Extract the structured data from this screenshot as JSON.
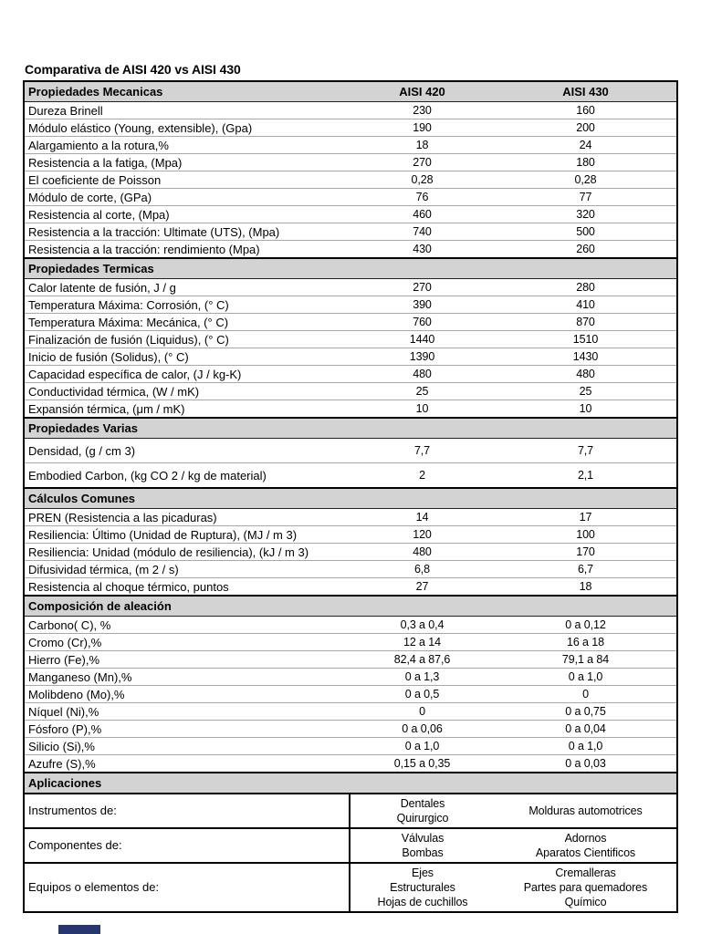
{
  "page": {
    "title": "Comparativa de AISI 420 vs AISI 430",
    "background_color": "#ffffff",
    "table_header_bg": "#d3d3d3",
    "table_border_color": "#000000",
    "footer_bar_color": "#27366f"
  },
  "table": {
    "col_headers": [
      "AISI 420",
      "AISI 430"
    ],
    "sections": [
      {
        "header": "Propiedades Mecanicas",
        "rows": [
          [
            "Dureza Brinell",
            "230",
            "160"
          ],
          [
            "Módulo elástico (Young, extensible), (Gpa)",
            "190",
            "200"
          ],
          [
            "Alargamiento a la rotura,%",
            "18",
            "24"
          ],
          [
            "Resistencia a la fatiga, (Mpa)",
            "270",
            "180"
          ],
          [
            "El coeficiente de Poisson",
            "0,28",
            "0,28"
          ],
          [
            "Módulo de corte, (GPa)",
            "76",
            "77"
          ],
          [
            "Resistencia al corte, (Mpa)",
            "460",
            "320"
          ],
          [
            "Resistencia a la tracción: Ultimate (UTS), (Mpa)",
            "740",
            "500"
          ],
          [
            "Resistencia a la tracción: rendimiento (Mpa)",
            "430",
            "260"
          ]
        ]
      },
      {
        "header": "Propiedades Termicas",
        "rows": [
          [
            "Calor latente de fusión, J / g",
            "270",
            "280"
          ],
          [
            "Temperatura Máxima: Corrosión, (° C)",
            "390",
            "410"
          ],
          [
            "Temperatura Máxima: Mecánica, (° C)",
            "760",
            "870"
          ],
          [
            "Finalización de fusión (Liquidus), (° C)",
            "1440",
            "1510"
          ],
          [
            "Inicio de fusión (Solidus), (° C)",
            "1390",
            "1430"
          ],
          [
            "Capacidad específica de calor, (J / kg-K)",
            "480",
            "480"
          ],
          [
            "Conductividad térmica, (W / mK)",
            "25",
            "25"
          ],
          [
            "Expansión térmica, (μm / mK)",
            "10",
            "10"
          ]
        ]
      },
      {
        "header": "Propiedades Varias",
        "tall": true,
        "rows": [
          [
            "Densidad, (g / cm 3)",
            "7,7",
            "7,7"
          ],
          [
            "Embodied Carbon, (kg CO 2 / kg de material)",
            "2",
            "2,1"
          ]
        ]
      },
      {
        "header": "Cálculos Comunes",
        "rows": [
          [
            "PREN (Resistencia a las picaduras)",
            "14",
            "17"
          ],
          [
            "Resiliencia: Último (Unidad de Ruptura), (MJ / m 3)",
            "120",
            "100"
          ],
          [
            "Resiliencia: Unidad (módulo de resiliencia), (kJ / m 3)",
            "480",
            "170"
          ],
          [
            "Difusividad térmica, (m 2 / s)",
            "6,8",
            "6,7"
          ],
          [
            "Resistencia al choque térmico, puntos",
            "27",
            "18"
          ]
        ]
      },
      {
        "header": "Composición de aleación",
        "rows": [
          [
            "Carbono( C), %",
            "0,3 a 0,4",
            "0 a 0,12"
          ],
          [
            "Cromo (Cr),%",
            "12 a 14",
            "16 a 18"
          ],
          [
            "Hierro (Fe),%",
            "82,4 a 87,6",
            "79,1 a 84"
          ],
          [
            "Manganeso (Mn),%",
            "0 a 1,3",
            "0 a 1,0"
          ],
          [
            "Molibdeno (Mo),%",
            "0 a 0,5",
            "0"
          ],
          [
            "Níquel (Ni),%",
            "0",
            "0 a 0,75"
          ],
          [
            "Fósforo (P),%",
            "0 a 0,06",
            "0 a 0,04"
          ],
          [
            "Silicio (Si),%",
            "0 a 1,0",
            "0 a 1,0"
          ],
          [
            "Azufre (S),%",
            "0,15 a 0,35",
            "0 a 0,03"
          ]
        ]
      },
      {
        "header": "Aplicaciones",
        "app": true,
        "rows": [
          [
            "Instrumentos de:",
            "Dentales\nQuirurgico",
            "Molduras automotrices"
          ],
          [
            "Componentes de:",
            "Válvulas\nBombas",
            "Adornos\nAparatos Cientificos"
          ],
          [
            "Equipos o elementos de:",
            "Ejes\nEstructurales\nHojas de cuchillos",
            "Cremalleras\nPartes para quemadores\nQuímico"
          ]
        ]
      }
    ]
  }
}
